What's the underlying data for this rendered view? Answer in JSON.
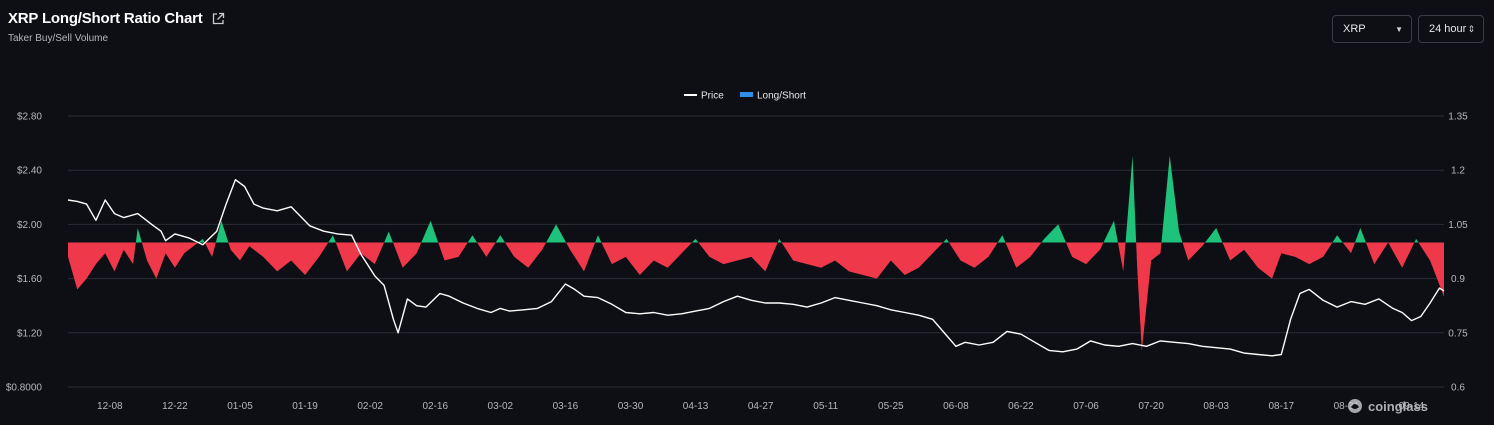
{
  "header": {
    "title": "XRP Long/Short Ratio Chart",
    "subtitle": "Taker Buy/Sell Volume"
  },
  "controls": {
    "symbol": "XRP",
    "interval": "24 hour"
  },
  "watermark": "coinglass",
  "colors": {
    "background": "#0e0f14",
    "price_line": "#ffffff",
    "long_fill": "#1fc27a",
    "short_fill": "#f0384b",
    "legend_long_short": "#2f8ee5",
    "grid": "#2a2c35"
  },
  "chart_data": {
    "type": "line+area",
    "legend": [
      "Price",
      "Long/Short"
    ],
    "legend_position": "top-center",
    "x_tick_labels": [
      "12-08",
      "12-22",
      "01-05",
      "01-19",
      "02-02",
      "02-16",
      "03-02",
      "03-16",
      "03-30",
      "04-13",
      "04-27",
      "05-11",
      "05-25",
      "06-08",
      "06-22",
      "07-06",
      "07-20",
      "08-03",
      "08-17",
      "08-31",
      "09-14"
    ],
    "y_left": {
      "ticks": [
        "$0.8000",
        "$1.20",
        "$1.60",
        "$2.00",
        "$2.40",
        "$2.80"
      ],
      "range": [
        0.8,
        2.8
      ]
    },
    "y_right": {
      "ticks": [
        "0.6",
        "0.75",
        "0.9",
        "1.05",
        "1.2",
        "1.35"
      ],
      "range": [
        0.6,
        1.35
      ],
      "baseline": 1.0
    },
    "grid": true,
    "series": [
      {
        "name": "Price",
        "axis": "left",
        "points": [
          [
            "11-29",
            2.18
          ],
          [
            "12-01",
            2.17
          ],
          [
            "12-03",
            2.15
          ],
          [
            "12-05",
            2.03
          ],
          [
            "12-07",
            2.18
          ],
          [
            "12-09",
            2.08
          ],
          [
            "12-11",
            2.05
          ],
          [
            "12-14",
            2.08
          ],
          [
            "12-17",
            2.0
          ],
          [
            "12-19",
            1.95
          ],
          [
            "12-20",
            1.88
          ],
          [
            "12-22",
            1.93
          ],
          [
            "12-25",
            1.9
          ],
          [
            "12-28",
            1.85
          ],
          [
            "12-31",
            1.95
          ],
          [
            "01-02",
            2.15
          ],
          [
            "01-04",
            2.33
          ],
          [
            "01-06",
            2.28
          ],
          [
            "01-08",
            2.15
          ],
          [
            "01-10",
            2.12
          ],
          [
            "01-13",
            2.1
          ],
          [
            "01-16",
            2.13
          ],
          [
            "01-18",
            2.06
          ],
          [
            "01-20",
            1.99
          ],
          [
            "01-23",
            1.95
          ],
          [
            "01-26",
            1.93
          ],
          [
            "01-29",
            1.92
          ],
          [
            "01-31",
            1.78
          ],
          [
            "02-03",
            1.62
          ],
          [
            "02-05",
            1.55
          ],
          [
            "02-07",
            1.3
          ],
          [
            "02-08",
            1.2
          ],
          [
            "02-10",
            1.45
          ],
          [
            "02-12",
            1.4
          ],
          [
            "02-14",
            1.39
          ],
          [
            "02-17",
            1.49
          ],
          [
            "02-19",
            1.47
          ],
          [
            "02-22",
            1.42
          ],
          [
            "02-25",
            1.38
          ],
          [
            "02-28",
            1.35
          ],
          [
            "03-02",
            1.38
          ],
          [
            "03-04",
            1.36
          ],
          [
            "03-07",
            1.37
          ],
          [
            "03-10",
            1.38
          ],
          [
            "03-13",
            1.43
          ],
          [
            "03-16",
            1.56
          ],
          [
            "03-18",
            1.52
          ],
          [
            "03-20",
            1.47
          ],
          [
            "03-23",
            1.46
          ],
          [
            "03-26",
            1.41
          ],
          [
            "03-29",
            1.35
          ],
          [
            "04-01",
            1.34
          ],
          [
            "04-04",
            1.35
          ],
          [
            "04-07",
            1.33
          ],
          [
            "04-10",
            1.34
          ],
          [
            "04-13",
            1.36
          ],
          [
            "04-16",
            1.38
          ],
          [
            "04-19",
            1.43
          ],
          [
            "04-22",
            1.47
          ],
          [
            "04-25",
            1.44
          ],
          [
            "04-28",
            1.42
          ],
          [
            "05-01",
            1.42
          ],
          [
            "05-04",
            1.41
          ],
          [
            "05-07",
            1.39
          ],
          [
            "05-10",
            1.42
          ],
          [
            "05-13",
            1.46
          ],
          [
            "05-16",
            1.44
          ],
          [
            "05-19",
            1.42
          ],
          [
            "05-22",
            1.4
          ],
          [
            "05-25",
            1.37
          ],
          [
            "05-28",
            1.35
          ],
          [
            "05-31",
            1.33
          ],
          [
            "06-03",
            1.3
          ],
          [
            "06-06",
            1.18
          ],
          [
            "06-08",
            1.1
          ],
          [
            "06-10",
            1.13
          ],
          [
            "06-13",
            1.11
          ],
          [
            "06-16",
            1.13
          ],
          [
            "06-19",
            1.21
          ],
          [
            "06-22",
            1.19
          ],
          [
            "06-25",
            1.13
          ],
          [
            "06-28",
            1.07
          ],
          [
            "07-01",
            1.06
          ],
          [
            "07-04",
            1.08
          ],
          [
            "07-07",
            1.14
          ],
          [
            "07-10",
            1.11
          ],
          [
            "07-13",
            1.1
          ],
          [
            "07-16",
            1.12
          ],
          [
            "07-19",
            1.1
          ],
          [
            "07-22",
            1.14
          ],
          [
            "07-25",
            1.13
          ],
          [
            "07-28",
            1.12
          ],
          [
            "07-31",
            1.1
          ],
          [
            "08-03",
            1.09
          ],
          [
            "08-06",
            1.08
          ],
          [
            "08-09",
            1.05
          ],
          [
            "08-12",
            1.04
          ],
          [
            "08-15",
            1.03
          ],
          [
            "08-17",
            1.04
          ],
          [
            "08-19",
            1.3
          ],
          [
            "08-21",
            1.49
          ],
          [
            "08-23",
            1.52
          ],
          [
            "08-26",
            1.44
          ],
          [
            "08-29",
            1.39
          ],
          [
            "09-01",
            1.43
          ],
          [
            "09-04",
            1.41
          ],
          [
            "09-07",
            1.45
          ],
          [
            "09-10",
            1.38
          ],
          [
            "09-12",
            1.35
          ],
          [
            "09-14",
            1.29
          ],
          [
            "09-16",
            1.32
          ],
          [
            "09-18",
            1.42
          ],
          [
            "09-20",
            1.53
          ],
          [
            "09-21",
            1.51
          ]
        ]
      },
      {
        "name": "Long/Short",
        "axis": "right",
        "points": [
          [
            "11-29",
            0.96
          ],
          [
            "12-01",
            0.87
          ],
          [
            "12-03",
            0.9
          ],
          [
            "12-05",
            0.94
          ],
          [
            "12-07",
            0.97
          ],
          [
            "12-09",
            0.92
          ],
          [
            "12-11",
            0.98
          ],
          [
            "12-13",
            0.94
          ],
          [
            "12-14",
            1.04
          ],
          [
            "12-16",
            0.95
          ],
          [
            "12-18",
            0.9
          ],
          [
            "12-20",
            0.97
          ],
          [
            "12-22",
            0.93
          ],
          [
            "12-24",
            0.97
          ],
          [
            "12-26",
            0.99
          ],
          [
            "12-28",
            1.01
          ],
          [
            "12-30",
            0.96
          ],
          [
            "01-01",
            1.06
          ],
          [
            "01-03",
            0.98
          ],
          [
            "01-05",
            0.95
          ],
          [
            "01-07",
            0.99
          ],
          [
            "01-10",
            0.96
          ],
          [
            "01-13",
            0.92
          ],
          [
            "01-16",
            0.95
          ],
          [
            "01-19",
            0.91
          ],
          [
            "01-22",
            0.96
          ],
          [
            "01-25",
            1.02
          ],
          [
            "01-28",
            0.92
          ],
          [
            "01-31",
            0.97
          ],
          [
            "02-03",
            0.94
          ],
          [
            "02-06",
            1.03
          ],
          [
            "02-09",
            0.93
          ],
          [
            "02-12",
            0.97
          ],
          [
            "02-15",
            1.06
          ],
          [
            "02-18",
            0.95
          ],
          [
            "02-21",
            0.96
          ],
          [
            "02-24",
            1.02
          ],
          [
            "02-27",
            0.96
          ],
          [
            "03-02",
            1.02
          ],
          [
            "03-05",
            0.96
          ],
          [
            "03-08",
            0.93
          ],
          [
            "03-11",
            0.98
          ],
          [
            "03-14",
            1.05
          ],
          [
            "03-17",
            0.98
          ],
          [
            "03-20",
            0.92
          ],
          [
            "03-23",
            1.02
          ],
          [
            "03-26",
            0.94
          ],
          [
            "03-29",
            0.96
          ],
          [
            "04-01",
            0.91
          ],
          [
            "04-04",
            0.95
          ],
          [
            "04-07",
            0.93
          ],
          [
            "04-10",
            0.97
          ],
          [
            "04-13",
            1.01
          ],
          [
            "04-16",
            0.96
          ],
          [
            "04-19",
            0.94
          ],
          [
            "04-22",
            0.95
          ],
          [
            "04-25",
            0.96
          ],
          [
            "04-28",
            0.92
          ],
          [
            "05-01",
            1.01
          ],
          [
            "05-04",
            0.95
          ],
          [
            "05-07",
            0.94
          ],
          [
            "05-10",
            0.93
          ],
          [
            "05-13",
            0.95
          ],
          [
            "05-16",
            0.92
          ],
          [
            "05-19",
            0.91
          ],
          [
            "05-22",
            0.9
          ],
          [
            "05-25",
            0.95
          ],
          [
            "05-28",
            0.91
          ],
          [
            "05-31",
            0.93
          ],
          [
            "06-03",
            0.97
          ],
          [
            "06-06",
            1.01
          ],
          [
            "06-09",
            0.95
          ],
          [
            "06-12",
            0.93
          ],
          [
            "06-15",
            0.96
          ],
          [
            "06-18",
            1.02
          ],
          [
            "06-21",
            0.93
          ],
          [
            "06-24",
            0.96
          ],
          [
            "06-27",
            1.01
          ],
          [
            "06-30",
            1.05
          ],
          [
            "07-03",
            0.96
          ],
          [
            "07-06",
            0.94
          ],
          [
            "07-09",
            0.98
          ],
          [
            "07-12",
            1.06
          ],
          [
            "07-14",
            0.92
          ],
          [
            "07-16",
            1.24
          ],
          [
            "07-17",
            0.93
          ],
          [
            "07-18",
            0.7
          ],
          [
            "07-20",
            0.95
          ],
          [
            "07-22",
            0.97
          ],
          [
            "07-24",
            1.24
          ],
          [
            "07-26",
            1.03
          ],
          [
            "07-28",
            0.95
          ],
          [
            "07-31",
            0.99
          ],
          [
            "08-03",
            1.04
          ],
          [
            "08-06",
            0.95
          ],
          [
            "08-09",
            0.98
          ],
          [
            "08-12",
            0.93
          ],
          [
            "08-15",
            0.9
          ],
          [
            "08-17",
            0.97
          ],
          [
            "08-20",
            0.96
          ],
          [
            "08-23",
            0.94
          ],
          [
            "08-26",
            0.96
          ],
          [
            "08-29",
            1.02
          ],
          [
            "09-01",
            0.97
          ],
          [
            "09-03",
            1.04
          ],
          [
            "09-06",
            0.94
          ],
          [
            "09-09",
            1.0
          ],
          [
            "09-12",
            0.93
          ],
          [
            "09-15",
            1.01
          ],
          [
            "09-18",
            0.95
          ],
          [
            "09-21",
            0.85
          ]
        ]
      }
    ]
  }
}
